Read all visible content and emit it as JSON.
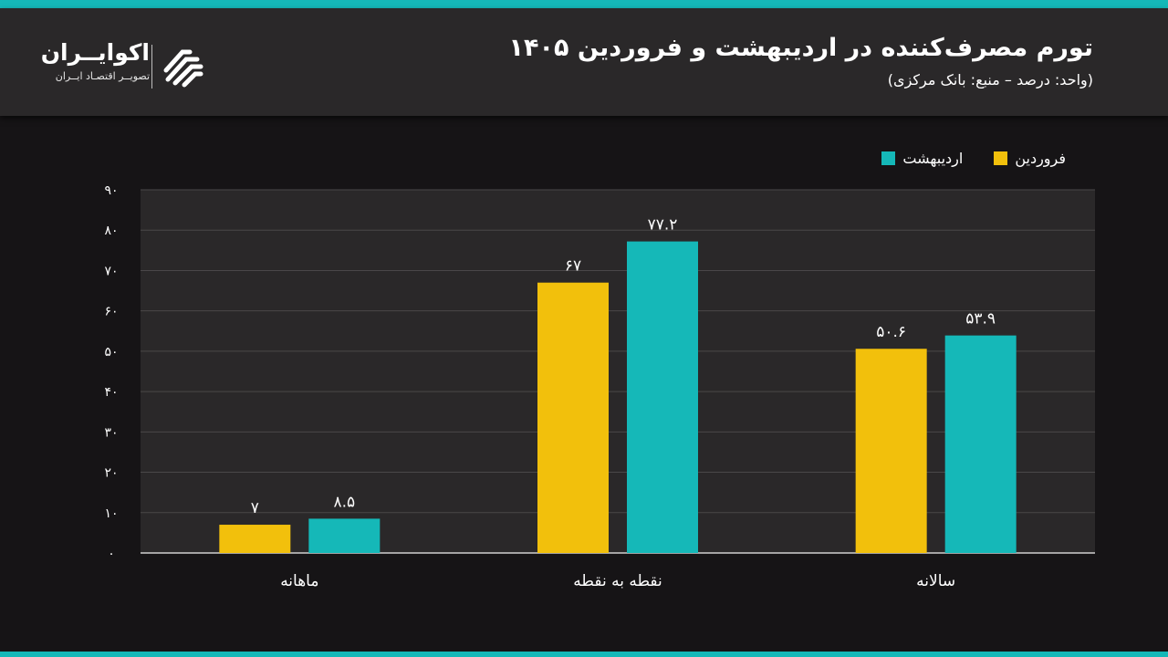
{
  "header": {
    "title": "تورم مصرف‌کننده در اردیبهشت و فروردین ۱۴۰۵",
    "subtitle": "(واحد: درصد – منبع: بانک مرکزی)"
  },
  "logo": {
    "name": "اکوایــران",
    "tagline": "تصویــر اقتصـاد ایــران",
    "icon": "ecoiran-logo-icon"
  },
  "colors": {
    "background": "#161416",
    "header": "#2a2829",
    "plot": "#2a2829",
    "accent": "#15b8b8",
    "farvardin": "#f2c00c",
    "ordibehesht": "#15b8b8",
    "grid": "#4a4749"
  },
  "chart_data": {
    "type": "bar",
    "categories": [
      "ماهانه",
      "نقطه به نقطه",
      "سالانه"
    ],
    "series": [
      {
        "name": "فروردین",
        "color": "#f2c00c",
        "values": [
          7,
          67,
          50.6
        ],
        "labels": [
          "۷",
          "۶۷",
          "۵۰.۶"
        ]
      },
      {
        "name": "اردیبهشت",
        "color": "#15b8b8",
        "values": [
          8.5,
          77.2,
          53.9
        ],
        "labels": [
          "۸.۵",
          "۷۷.۲",
          "۵۳.۹"
        ]
      }
    ],
    "ylim": [
      0,
      90
    ],
    "yticks": [
      0,
      10,
      20,
      30,
      40,
      50,
      60,
      70,
      80,
      90
    ],
    "ytick_labels": [
      "۰",
      "۱۰",
      "۲۰",
      "۳۰",
      "۴۰",
      "۵۰",
      "۶۰",
      "۷۰",
      "۸۰",
      "۹۰"
    ],
    "grid": true,
    "legend_position": "top-right"
  }
}
